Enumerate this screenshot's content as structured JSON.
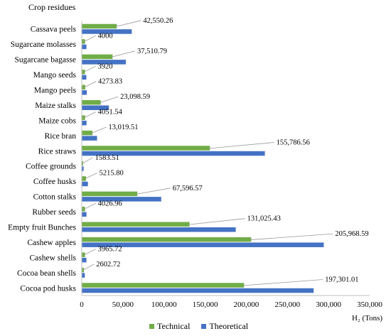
{
  "chart_data": {
    "type": "bar",
    "orientation": "horizontal",
    "title": "Crop residues",
    "xlabel": "H₂ (Tons)",
    "xlim": [
      0,
      350000
    ],
    "xticks": [
      0,
      50000,
      100000,
      150000,
      200000,
      250000,
      300000,
      350000
    ],
    "xtick_labels": [
      "0",
      "50,000",
      "100,000",
      "150,000",
      "200,000",
      "250,000",
      "300,000",
      "350,000"
    ],
    "grid": false,
    "legend_position": "bottom",
    "categories": [
      "Cassava peels",
      "Sugarcane molasses",
      "Sugarcane bagasse",
      "Mango seeds",
      "Mango peels",
      "Maize stalks",
      "Maize cobs",
      "Rice bran",
      "Rice straws",
      "Coffee grounds",
      "Coffee husks",
      "Cotton stalks",
      "Rubber seeds",
      "Empty fruit Bunches",
      "Cashew apples",
      "Cashew shells",
      "Cocoa bean shells",
      "Cocoa pod husks"
    ],
    "series": [
      {
        "name": "Technical",
        "color": "#70ad47",
        "values": [
          42550.26,
          4000,
          37510.79,
          3920,
          4273.83,
          23098.59,
          4051.54,
          13019.51,
          155786.56,
          1583.51,
          5215.8,
          67596.57,
          4026.96,
          131025.43,
          205968.59,
          3965.72,
          2602.72,
          197301.01
        ]
      },
      {
        "name": "Theoretical",
        "color": "#4472c4",
        "values": [
          60800,
          5700,
          53600,
          5600,
          6100,
          33000,
          5800,
          18600,
          222600,
          2260,
          7450,
          96600,
          5750,
          187200,
          294200,
          5670,
          3720,
          281900
        ]
      }
    ],
    "data_labels": [
      "42,550.26",
      "4000",
      "37,510.79",
      "3920",
      "4273.83",
      "23,098.59",
      "4051.54",
      "13,019.51",
      "155,786.56",
      "1583.51",
      "5215.80",
      "67,596.57",
      "4026.96",
      "131,025.43",
      "205,968.59",
      "3965.72",
      "2602.72",
      "197,301.01"
    ]
  },
  "legend": {
    "technical_label": "Technical",
    "theoretical_label": "Theoretical"
  }
}
